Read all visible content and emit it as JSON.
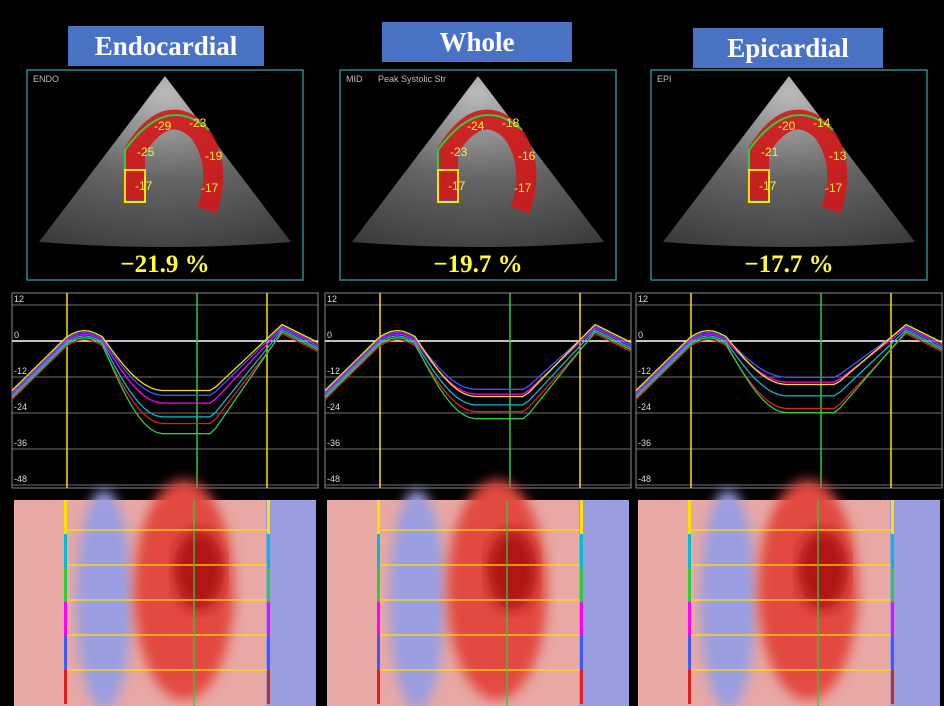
{
  "panels": [
    {
      "title": "Endocardial",
      "view_label": "ENDO",
      "segments": [
        "-25",
        "-29",
        "-23",
        "-19",
        "-17",
        "-17"
      ],
      "gls": "−21.9 %"
    },
    {
      "title": "Whole",
      "view_label": "MID",
      "subtitle": "Peak Systolic Str",
      "segments": [
        "-23",
        "-24",
        "-18",
        "-16",
        "-17",
        "-17"
      ],
      "gls": "−19.7 %"
    },
    {
      "title": "Epicardial",
      "view_label": "EPI",
      "segments": [
        "-21",
        "-20",
        "-14",
        "-13",
        "-17",
        "-17"
      ],
      "gls": "−17.7 %"
    }
  ],
  "strain_plot": {
    "yticks": [
      12,
      0,
      -12,
      -24,
      -36,
      -48
    ]
  }
}
